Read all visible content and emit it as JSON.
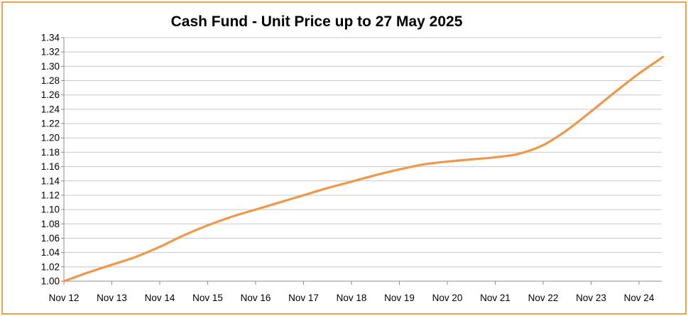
{
  "chart_data": {
    "type": "line",
    "title": "Cash Fund - Unit Price up to 27 May 2025",
    "xlabel": "",
    "ylabel": "",
    "ylim": [
      1.0,
      1.34
    ],
    "y_ticks": [
      "1.00",
      "1.02",
      "1.04",
      "1.06",
      "1.08",
      "1.10",
      "1.12",
      "1.14",
      "1.16",
      "1.18",
      "1.20",
      "1.22",
      "1.24",
      "1.26",
      "1.28",
      "1.30",
      "1.32",
      "1.34"
    ],
    "x_ticks": [
      "Nov 12",
      "Nov 13",
      "Nov 14",
      "Nov 15",
      "Nov 16",
      "Nov 17",
      "Nov 18",
      "Nov 19",
      "Nov 20",
      "Nov 21",
      "Nov 22",
      "Nov 23",
      "Nov 24"
    ],
    "grid": true,
    "legend": "none",
    "series": [
      {
        "color": "#f0974a",
        "x": [
          "Nov 12",
          "May 13",
          "Nov 13",
          "May 14",
          "Nov 14",
          "May 15",
          "Nov 15",
          "May 16",
          "Nov 16",
          "May 17",
          "Nov 17",
          "May 18",
          "Nov 18",
          "May 19",
          "Nov 19",
          "May 20",
          "Nov 20",
          "May 21",
          "Nov 21",
          "May 22",
          "Nov 22",
          "May 23",
          "Nov 23",
          "May 24",
          "Nov 24",
          "May 25"
        ],
        "values": [
          1.0,
          1.012,
          1.023,
          1.034,
          1.048,
          1.064,
          1.078,
          1.09,
          1.1,
          1.11,
          1.12,
          1.13,
          1.139,
          1.148,
          1.156,
          1.163,
          1.167,
          1.17,
          1.173,
          1.178,
          1.19,
          1.211,
          1.237,
          1.264,
          1.29,
          1.313
        ]
      }
    ]
  },
  "colors": {
    "frame": "#f4a04e",
    "grid": "#c8c8c8",
    "axis": "#8c8c8c",
    "line": "#f0974a"
  }
}
